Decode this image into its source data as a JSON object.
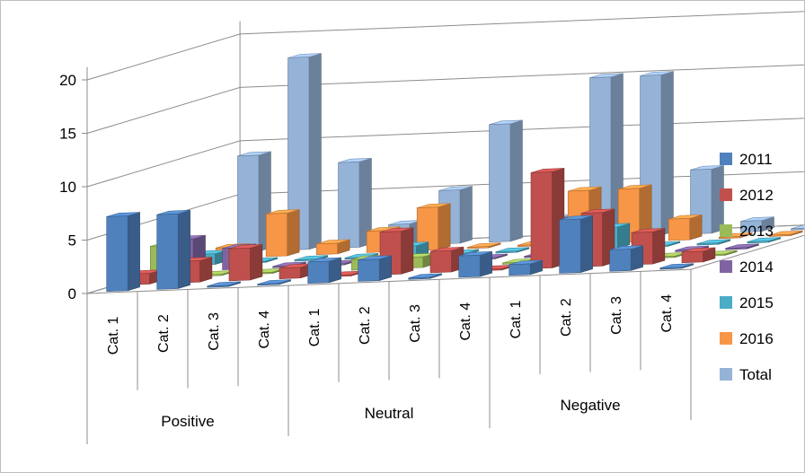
{
  "chart_data": {
    "type": "bar",
    "subtype": "3d-column",
    "title": "",
    "xlabel": "",
    "ylabel": "",
    "ylim": [
      0,
      20
    ],
    "yticks": [
      "0",
      "5",
      "10",
      "15",
      "20"
    ],
    "grid": true,
    "legend_position": "right",
    "groups": [
      {
        "label": "Positive",
        "categories": [
          "Cat. 1",
          "Cat. 2",
          "Cat. 3",
          "Cat. 4"
        ]
      },
      {
        "label": "Neutral",
        "categories": [
          "Cat. 1",
          "Cat. 2",
          "Cat. 3",
          "Cat. 4"
        ]
      },
      {
        "label": "Negative",
        "categories": [
          "Cat. 1",
          "Cat. 2",
          "Cat. 3",
          "Cat. 4"
        ]
      }
    ],
    "series": [
      {
        "name": "2011",
        "color": "#4F81BD",
        "values": [
          7,
          7,
          0,
          0,
          2,
          2,
          0,
          2,
          1,
          5,
          2,
          0
        ]
      },
      {
        "name": "2012",
        "color": "#C0504D",
        "values": [
          1,
          2,
          3,
          1,
          0,
          4,
          2,
          0,
          9,
          5,
          3,
          1
        ]
      },
      {
        "name": "2013",
        "color": "#9BBB59",
        "values": [
          3,
          0,
          0,
          0,
          1,
          1,
          0,
          0,
          0,
          0,
          0,
          0
        ]
      },
      {
        "name": "2014",
        "color": "#8064A2",
        "values": [
          3,
          2,
          0,
          0,
          0,
          0,
          0,
          0,
          0,
          0,
          0,
          0
        ]
      },
      {
        "name": "2015",
        "color": "#4BACC6",
        "values": [
          1,
          0,
          0,
          0,
          1,
          0,
          0,
          0,
          2,
          0,
          0,
          0
        ]
      },
      {
        "name": "2016",
        "color": "#F79646",
        "values": [
          1,
          4,
          1,
          2,
          4,
          0,
          0,
          5,
          5,
          2,
          0,
          0
        ]
      },
      {
        "name": "Total",
        "color": "#95B3D7",
        "values": [
          9,
          18,
          8,
          2,
          5,
          11,
          2,
          15,
          15,
          6,
          1,
          0
        ]
      }
    ]
  }
}
